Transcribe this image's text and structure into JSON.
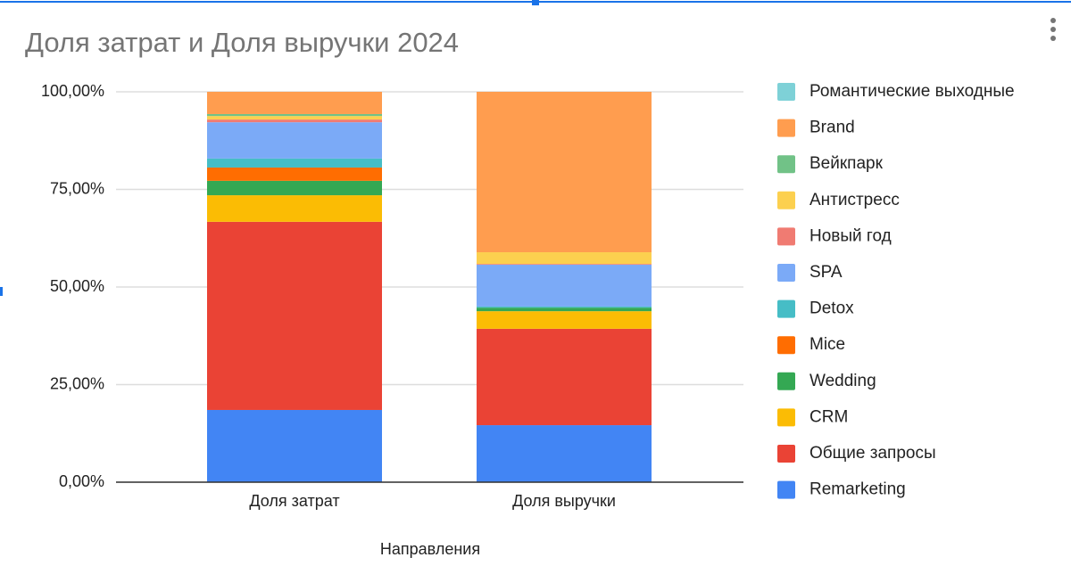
{
  "chart_data": {
    "type": "stacked_bar",
    "title": "Доля затрат и Доля выручки 2024",
    "x_label": "Направления",
    "categories": [
      "Доля затрат",
      "Доля выручки"
    ],
    "ylim": [
      0,
      100
    ],
    "yticks": [
      {
        "value": 0,
        "label": "0,00%"
      },
      {
        "value": 25,
        "label": "25,00%"
      },
      {
        "value": 50,
        "label": "50,00%"
      },
      {
        "value": 75,
        "label": "75,00%"
      },
      {
        "value": 100,
        "label": "100,00%"
      }
    ],
    "grid": true,
    "legend": "right",
    "series": [
      {
        "name": "Remarketing",
        "color": "#4285f4",
        "values": [
          18.5,
          14.6
        ]
      },
      {
        "name": "Общие запросы",
        "color": "#ea4335",
        "values": [
          48.2,
          24.7
        ]
      },
      {
        "name": "CRM",
        "color": "#fbbc04",
        "values": [
          6.8,
          4.5
        ]
      },
      {
        "name": "Wedding",
        "color": "#34a853",
        "values": [
          3.7,
          0.9
        ]
      },
      {
        "name": "Mice",
        "color": "#ff6d01",
        "values": [
          3.4,
          0
        ]
      },
      {
        "name": "Detox",
        "color": "#46bdc6",
        "values": [
          2.3,
          0.3
        ]
      },
      {
        "name": "SPA",
        "color": "#7baaf7",
        "values": [
          9.3,
          10.7
        ]
      },
      {
        "name": "Новый год",
        "color": "#f07b72",
        "values": [
          0.7,
          0.2
        ]
      },
      {
        "name": "Антистресс",
        "color": "#fcd04f",
        "values": [
          0.9,
          3.0
        ]
      },
      {
        "name": "Вейкпарк",
        "color": "#71c287",
        "values": [
          0.5,
          0
        ]
      },
      {
        "name": "Brand",
        "color": "#ff9d4f",
        "values": [
          5.7,
          41.1
        ]
      },
      {
        "name": "Романтические выходные",
        "color": "#7ed1d7",
        "values": [
          0,
          0
        ]
      }
    ]
  }
}
